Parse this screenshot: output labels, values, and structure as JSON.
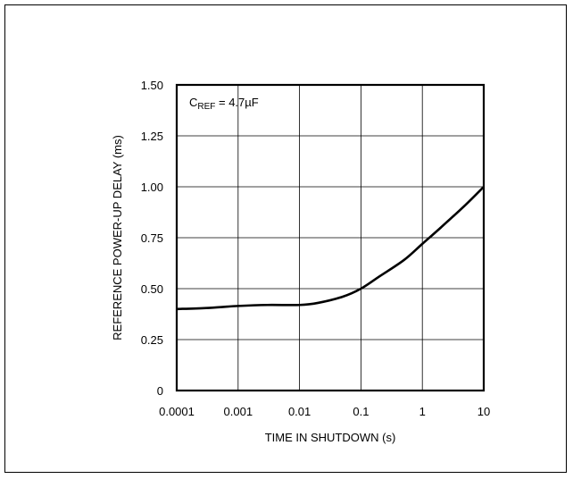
{
  "chart_data": {
    "type": "line",
    "title": "",
    "xlabel": "TIME IN SHUTDOWN (s)",
    "ylabel": "REFERENCE POWER-UP DELAY (ms)",
    "x_scale": "log",
    "xlim": [
      0.0001,
      10
    ],
    "ylim": [
      0,
      1.5
    ],
    "x_ticks": [
      {
        "value": 0.0001,
        "label": "0.0001"
      },
      {
        "value": 0.001,
        "label": "0.001"
      },
      {
        "value": 0.01,
        "label": "0.01"
      },
      {
        "value": 0.1,
        "label": "0.1"
      },
      {
        "value": 1,
        "label": "1"
      },
      {
        "value": 10,
        "label": "10"
      }
    ],
    "y_ticks": [
      {
        "value": 0,
        "label": "0"
      },
      {
        "value": 0.25,
        "label": "0.25"
      },
      {
        "value": 0.5,
        "label": "0.50"
      },
      {
        "value": 0.75,
        "label": "0.75"
      },
      {
        "value": 1.0,
        "label": "1.00"
      },
      {
        "value": 1.25,
        "label": "1.25"
      },
      {
        "value": 1.5,
        "label": "1.50"
      }
    ],
    "grid": true,
    "annotation": {
      "prefix": "C",
      "subscript": "REF",
      "suffix": " = 4.7µF"
    },
    "series": [
      {
        "x": [
          0.0001,
          0.0003,
          0.001,
          0.003,
          0.01,
          0.02,
          0.05,
          0.1,
          0.2,
          0.5,
          1,
          2,
          5,
          10
        ],
        "y": [
          0.4,
          0.405,
          0.415,
          0.42,
          0.42,
          0.43,
          0.46,
          0.5,
          0.56,
          0.64,
          0.72,
          0.8,
          0.91,
          1.0
        ]
      }
    ]
  }
}
